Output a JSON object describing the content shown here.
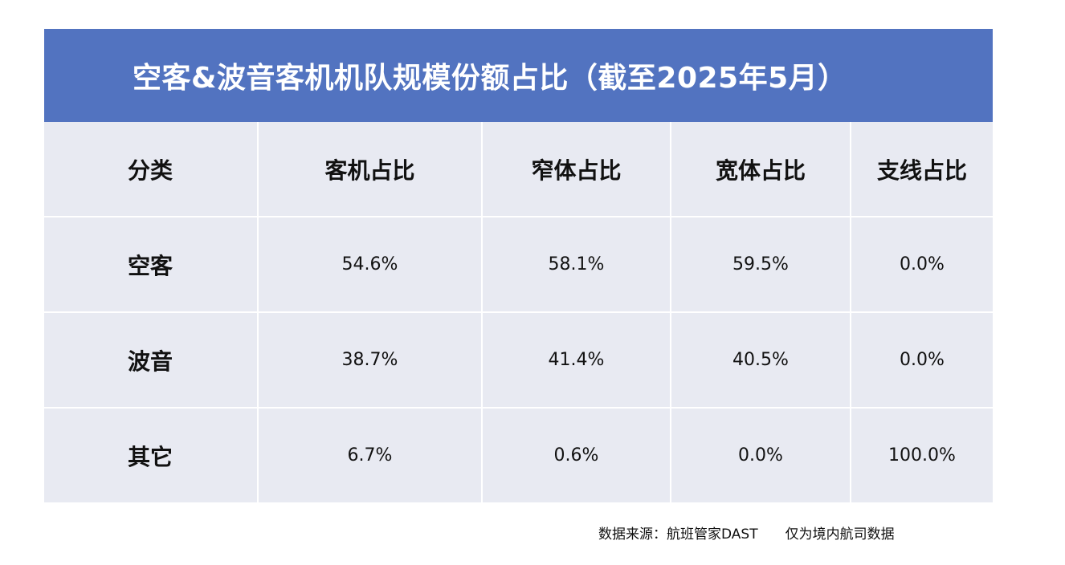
{
  "title": "空客&波音客机机队规模份额占比（截至2025年5月）",
  "table": {
    "headers": [
      "分类",
      "客机占比",
      "窄体占比",
      "宽体占比",
      "支线占比"
    ],
    "rows": [
      {
        "label": "空客",
        "values": [
          "54.6%",
          "58.1%",
          "59.5%",
          "0.0%"
        ]
      },
      {
        "label": "波音",
        "values": [
          "38.7%",
          "41.4%",
          "40.5%",
          "0.0%"
        ]
      },
      {
        "label": "其它",
        "values": [
          "6.7%",
          "0.6%",
          "0.0%",
          "100.0%"
        ]
      }
    ]
  },
  "footnote": {
    "source": "数据来源：航班管家DAST",
    "scope": "仅为境内航司数据"
  },
  "colors": {
    "title_bg": "#5273C0",
    "cell_bg": "#E8EAF2",
    "grid": "#ffffff"
  }
}
